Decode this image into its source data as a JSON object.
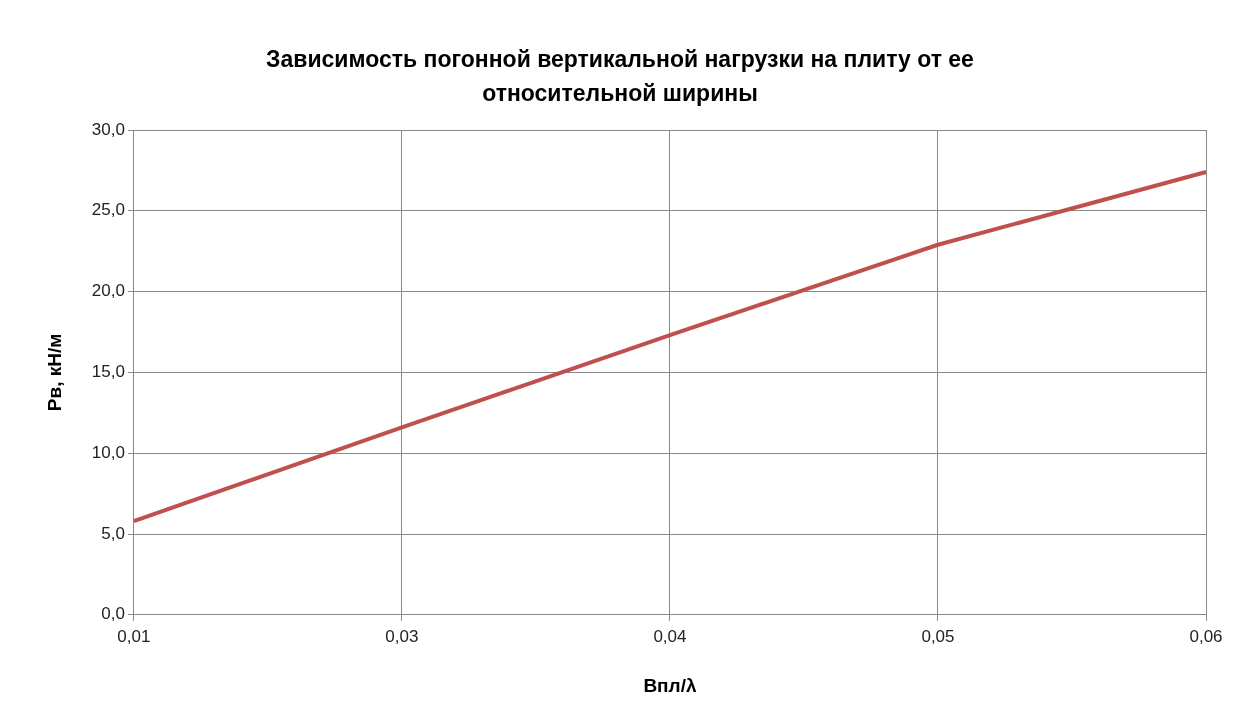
{
  "chart_data": {
    "type": "line",
    "title": "Зависимость погонной вертикальной нагрузки на плиту от  ее относительной ширины",
    "xlabel": "Bпл/λ",
    "ylabel": "Pв, кН/м",
    "categories": [
      "0,01",
      "0,03",
      "0,04",
      "0,05",
      "0,06"
    ],
    "series": [
      {
        "color": "#c0504d",
        "values": [
          5.8,
          11.6,
          17.3,
          22.9,
          27.4
        ]
      }
    ],
    "ylim": [
      0,
      30
    ],
    "yticks": [
      {
        "value": 0,
        "label": "0,0"
      },
      {
        "value": 5,
        "label": "5,0"
      },
      {
        "value": 10,
        "label": "10,0"
      },
      {
        "value": 15,
        "label": "15,0"
      },
      {
        "value": 20,
        "label": "20,0"
      },
      {
        "value": 25,
        "label": "25,0"
      },
      {
        "value": 30,
        "label": "30,0"
      }
    ],
    "grid": true,
    "legend": false,
    "marker": "none",
    "line_style": "solid"
  }
}
